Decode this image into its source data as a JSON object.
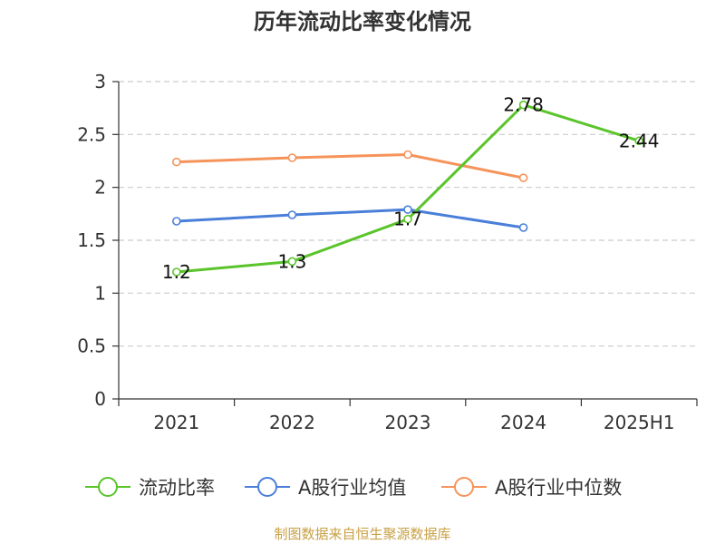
{
  "chart_data": {
    "type": "line",
    "title": "历年流动比率变化情况",
    "categories": [
      "2021",
      "2022",
      "2023",
      "2024",
      "2025H1"
    ],
    "ylim": [
      0,
      3
    ],
    "yticks": [
      "0",
      "0.5",
      "1",
      "1.5",
      "2",
      "2.5",
      "3"
    ],
    "grid": true,
    "legend_position": "bottom",
    "series": [
      {
        "name": "流动比率",
        "color": "#5ac42b",
        "values": [
          1.2,
          1.3,
          1.7,
          2.78,
          2.44
        ],
        "labels": [
          "1.2",
          "1.3",
          "1.7",
          "2.78",
          "2.44"
        ]
      },
      {
        "name": "A股行业均值",
        "color": "#4a7fd9",
        "values": [
          1.68,
          1.74,
          1.79,
          1.62,
          null
        ]
      },
      {
        "name": "A股行业中位数",
        "color": "#f5935a",
        "values": [
          2.24,
          2.28,
          2.31,
          2.09,
          null
        ]
      }
    ]
  },
  "source": "制图数据来自恒生聚源数据库"
}
